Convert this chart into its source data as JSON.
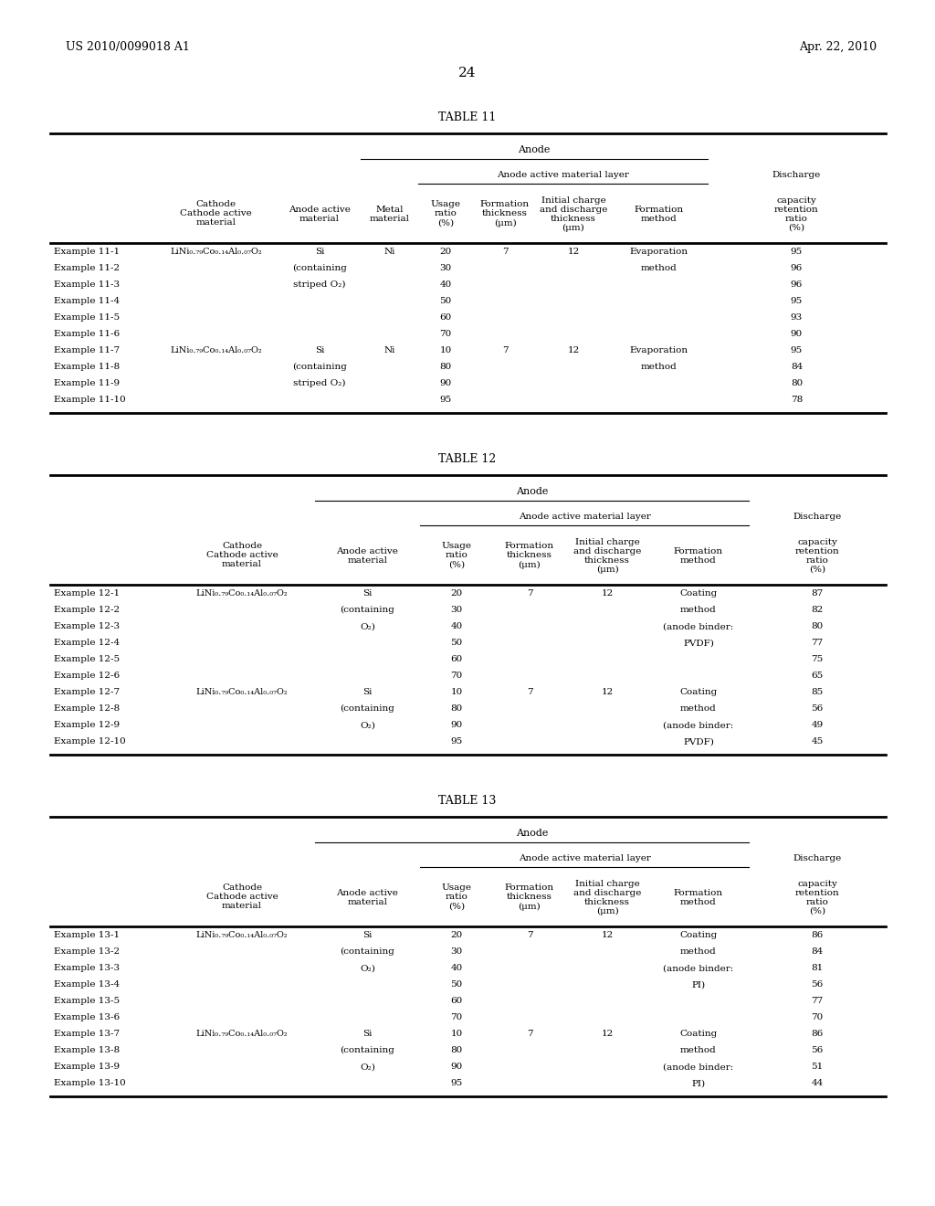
{
  "page_left": "US 2010/0099018 A1",
  "page_right": "Apr. 22, 2010",
  "page_number": "24",
  "background_color": "#ffffff",
  "text_color": "#000000",
  "tables": [
    {
      "title": "TABLE 11",
      "has_metal_col": true,
      "cathode_formula": "LiNi0.79Co0.14Al0.07O2",
      "rows": [
        [
          "Example 11-1",
          "LiNi₀.₇₉Co₀.₁₄Al₀.₀₇O₂",
          "Si",
          "Ni",
          "20",
          "7",
          "12",
          "Evaporation",
          "95"
        ],
        [
          "Example 11-2",
          "",
          "(containing",
          "",
          "30",
          "",
          "",
          "method",
          "96"
        ],
        [
          "Example 11-3",
          "",
          "striped O₂)",
          "",
          "40",
          "",
          "",
          "",
          "96"
        ],
        [
          "Example 11-4",
          "",
          "",
          "",
          "50",
          "",
          "",
          "",
          "95"
        ],
        [
          "Example 11-5",
          "",
          "",
          "",
          "60",
          "",
          "",
          "",
          "93"
        ],
        [
          "Example 11-6",
          "",
          "",
          "",
          "70",
          "",
          "",
          "",
          "90"
        ],
        [
          "Example 11-7",
          "LiNi₀.₇₉Co₀.₁₄Al₀.₀₇O₂",
          "Si",
          "Ni",
          "10",
          "7",
          "12",
          "Evaporation",
          "95"
        ],
        [
          "Example 11-8",
          "",
          "(containing",
          "",
          "80",
          "",
          "",
          "method",
          "84"
        ],
        [
          "Example 11-9",
          "",
          "striped O₂)",
          "",
          "90",
          "",
          "",
          "",
          "80"
        ],
        [
          "Example 11-10",
          "",
          "",
          "",
          "95",
          "",
          "",
          "",
          "78"
        ]
      ]
    },
    {
      "title": "TABLE 12",
      "has_metal_col": false,
      "rows": [
        [
          "Example 12-1",
          "LiNi₀.₇₉Co₀.₁₄Al₀.₀₇O₂",
          "Si",
          "20",
          "7",
          "12",
          "Coating",
          "87"
        ],
        [
          "Example 12-2",
          "",
          "(containing",
          "30",
          "",
          "",
          "method",
          "82"
        ],
        [
          "Example 12-3",
          "",
          "O₂)",
          "40",
          "",
          "",
          "(anode binder:",
          "80"
        ],
        [
          "Example 12-4",
          "",
          "",
          "50",
          "",
          "",
          "PVDF)",
          "77"
        ],
        [
          "Example 12-5",
          "",
          "",
          "60",
          "",
          "",
          "",
          "75"
        ],
        [
          "Example 12-6",
          "",
          "",
          "70",
          "",
          "",
          "",
          "65"
        ],
        [
          "Example 12-7",
          "LiNi₀.₇₉Co₀.₁₄Al₀.₀₇O₂",
          "Si",
          "10",
          "7",
          "12",
          "Coating",
          "85"
        ],
        [
          "Example 12-8",
          "",
          "(containing",
          "80",
          "",
          "",
          "method",
          "56"
        ],
        [
          "Example 12-9",
          "",
          "O₂)",
          "90",
          "",
          "",
          "(anode binder:",
          "49"
        ],
        [
          "Example 12-10",
          "",
          "",
          "95",
          "",
          "",
          "PVDF)",
          "45"
        ]
      ]
    },
    {
      "title": "TABLE 13",
      "has_metal_col": false,
      "rows": [
        [
          "Example 13-1",
          "LiNi₀.₇₉Co₀.₁₄Al₀.₀₇O₂",
          "Si",
          "20",
          "7",
          "12",
          "Coating",
          "86"
        ],
        [
          "Example 13-2",
          "",
          "(containing",
          "30",
          "",
          "",
          "method",
          "84"
        ],
        [
          "Example 13-3",
          "",
          "O₂)",
          "40",
          "",
          "",
          "(anode binder:",
          "81"
        ],
        [
          "Example 13-4",
          "",
          "",
          "50",
          "",
          "",
          "PI)",
          "56"
        ],
        [
          "Example 13-5",
          "",
          "",
          "60",
          "",
          "",
          "",
          "77"
        ],
        [
          "Example 13-6",
          "",
          "",
          "70",
          "",
          "",
          "",
          "70"
        ],
        [
          "Example 13-7",
          "LiNi₀.₇₉Co₀.₁₄Al₀.₀₇O₂",
          "Si",
          "10",
          "7",
          "12",
          "Coating",
          "86"
        ],
        [
          "Example 13-8",
          "",
          "(containing",
          "80",
          "",
          "",
          "method",
          "56"
        ],
        [
          "Example 13-9",
          "",
          "O₂)",
          "90",
          "",
          "",
          "(anode binder:",
          "51"
        ],
        [
          "Example 13-10",
          "",
          "",
          "95",
          "",
          "",
          "PI)",
          "44"
        ]
      ]
    }
  ]
}
